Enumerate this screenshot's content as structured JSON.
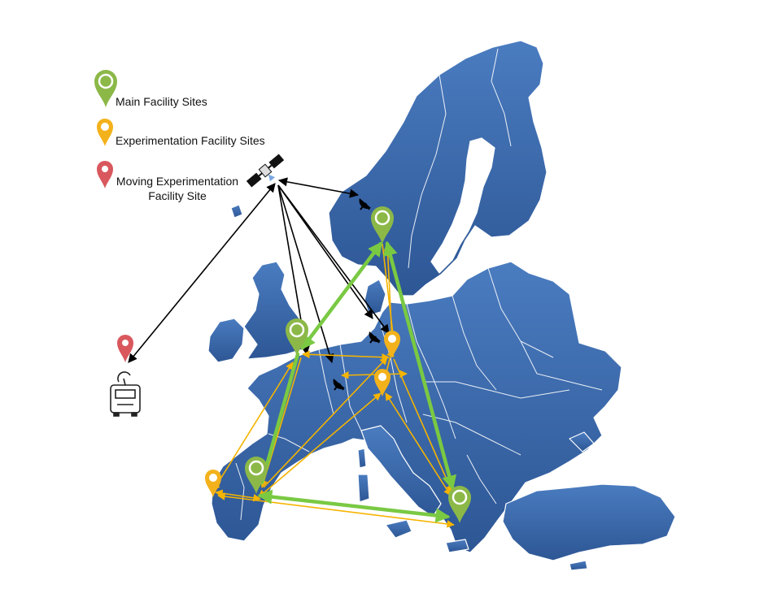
{
  "legend": {
    "main_label": "Main Facility Sites",
    "exp_label": "Experimentation Facility Sites",
    "moving_line1": "Moving Experimentation",
    "moving_line2": "Facility Site"
  },
  "colors": {
    "land": "#3f6fb0",
    "land_dark": "#2c5592",
    "border": "#ffffff",
    "main_site": "#8cb848",
    "exp_site": "#f3b21b",
    "moving_site": "#d9585e",
    "main_link": "#7ac943",
    "exp_link": "#f5b400",
    "satellite_link": "#000000"
  },
  "icons": [
    "map-pin-icon",
    "satellite-icon",
    "ground-antenna-icon",
    "van-icon"
  ]
}
